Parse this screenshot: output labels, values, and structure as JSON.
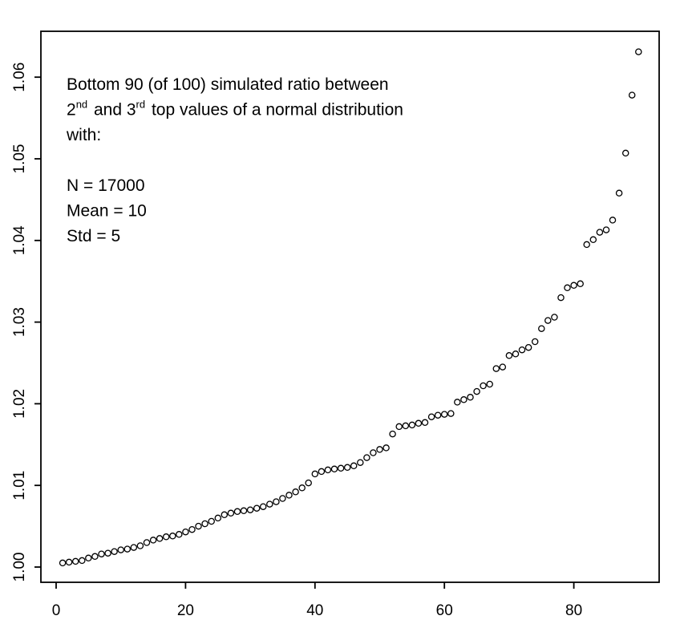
{
  "figure": {
    "background_color": "#ffffff",
    "frame_color": "#000000",
    "annotation_lines": [
      {
        "segments": [
          {
            "text": "Bottom 90 (of 100) simulated ratio between",
            "sup": false
          }
        ]
      },
      {
        "segments": [
          {
            "text": "2",
            "sup": false
          },
          {
            "text": "nd",
            "sup": true
          },
          {
            "text": " and 3",
            "sup": false
          },
          {
            "text": "rd",
            "sup": true
          },
          {
            "text": "  top values of a normal distribution",
            "sup": false
          }
        ]
      },
      {
        "segments": [
          {
            "text": "with:",
            "sup": false
          }
        ]
      },
      {
        "segments": []
      },
      {
        "segments": [
          {
            "text": "N = 17000",
            "sup": false
          }
        ]
      },
      {
        "segments": [
          {
            "text": "Mean = 10",
            "sup": false
          }
        ]
      },
      {
        "segments": [
          {
            "text": "Std = 5",
            "sup": false
          }
        ]
      }
    ]
  },
  "chart_data": {
    "type": "scatter",
    "title": "",
    "xlabel": "",
    "ylabel": "",
    "marker": "open-circle",
    "marker_color": "#000000",
    "grid": false,
    "legend_position": "none",
    "x_ticks": [
      0,
      20,
      40,
      60,
      80
    ],
    "y_tick_labels": [
      "1.00",
      "1.01",
      "1.02",
      "1.03",
      "1.04",
      "1.05",
      "1.06"
    ],
    "xlim": [
      -2.5,
      93.5
    ],
    "ylim": [
      0.9983,
      1.0656
    ],
    "x": [
      1,
      2,
      3,
      4,
      5,
      6,
      7,
      8,
      9,
      10,
      11,
      12,
      13,
      14,
      15,
      16,
      17,
      18,
      19,
      20,
      21,
      22,
      23,
      24,
      25,
      26,
      27,
      28,
      29,
      30,
      31,
      32,
      33,
      34,
      35,
      36,
      37,
      38,
      39,
      40,
      41,
      42,
      43,
      44,
      45,
      46,
      47,
      48,
      49,
      50,
      51,
      52,
      53,
      54,
      55,
      56,
      57,
      58,
      59,
      60,
      61,
      62,
      63,
      64,
      65,
      66,
      67,
      68,
      69,
      70,
      71,
      72,
      73,
      74,
      75,
      76,
      77,
      78,
      79,
      80,
      81,
      82,
      83,
      84,
      85,
      86,
      87,
      88,
      89,
      90
    ],
    "y": [
      1.0005,
      1.0006,
      1.0007,
      1.0008,
      1.0011,
      1.0013,
      1.0016,
      1.0017,
      1.0019,
      1.0021,
      1.0022,
      1.0024,
      1.0026,
      1.003,
      1.0033,
      1.0035,
      1.0037,
      1.0038,
      1.004,
      1.0043,
      1.0046,
      1.005,
      1.0053,
      1.0056,
      1.006,
      1.0064,
      1.0066,
      1.0068,
      1.0069,
      1.007,
      1.0072,
      1.0074,
      1.0077,
      1.008,
      1.0084,
      1.0088,
      1.0092,
      1.0097,
      1.0103,
      1.0114,
      1.0117,
      1.0119,
      1.012,
      1.0121,
      1.0122,
      1.0124,
      1.0128,
      1.0134,
      1.014,
      1.0144,
      1.0146,
      1.0163,
      1.0172,
      1.0173,
      1.0174,
      1.0176,
      1.0177,
      1.0184,
      1.0186,
      1.0187,
      1.0188,
      1.0202,
      1.0205,
      1.0208,
      1.0215,
      1.0222,
      1.0224,
      1.0243,
      1.0245,
      1.0259,
      1.0261,
      1.0266,
      1.0269,
      1.0276,
      1.0292,
      1.0302,
      1.0306,
      1.033,
      1.0342,
      1.0345,
      1.0347,
      1.0395,
      1.0401,
      1.041,
      1.0413,
      1.0425,
      1.0458,
      1.0507,
      1.0578,
      1.0631
    ]
  }
}
